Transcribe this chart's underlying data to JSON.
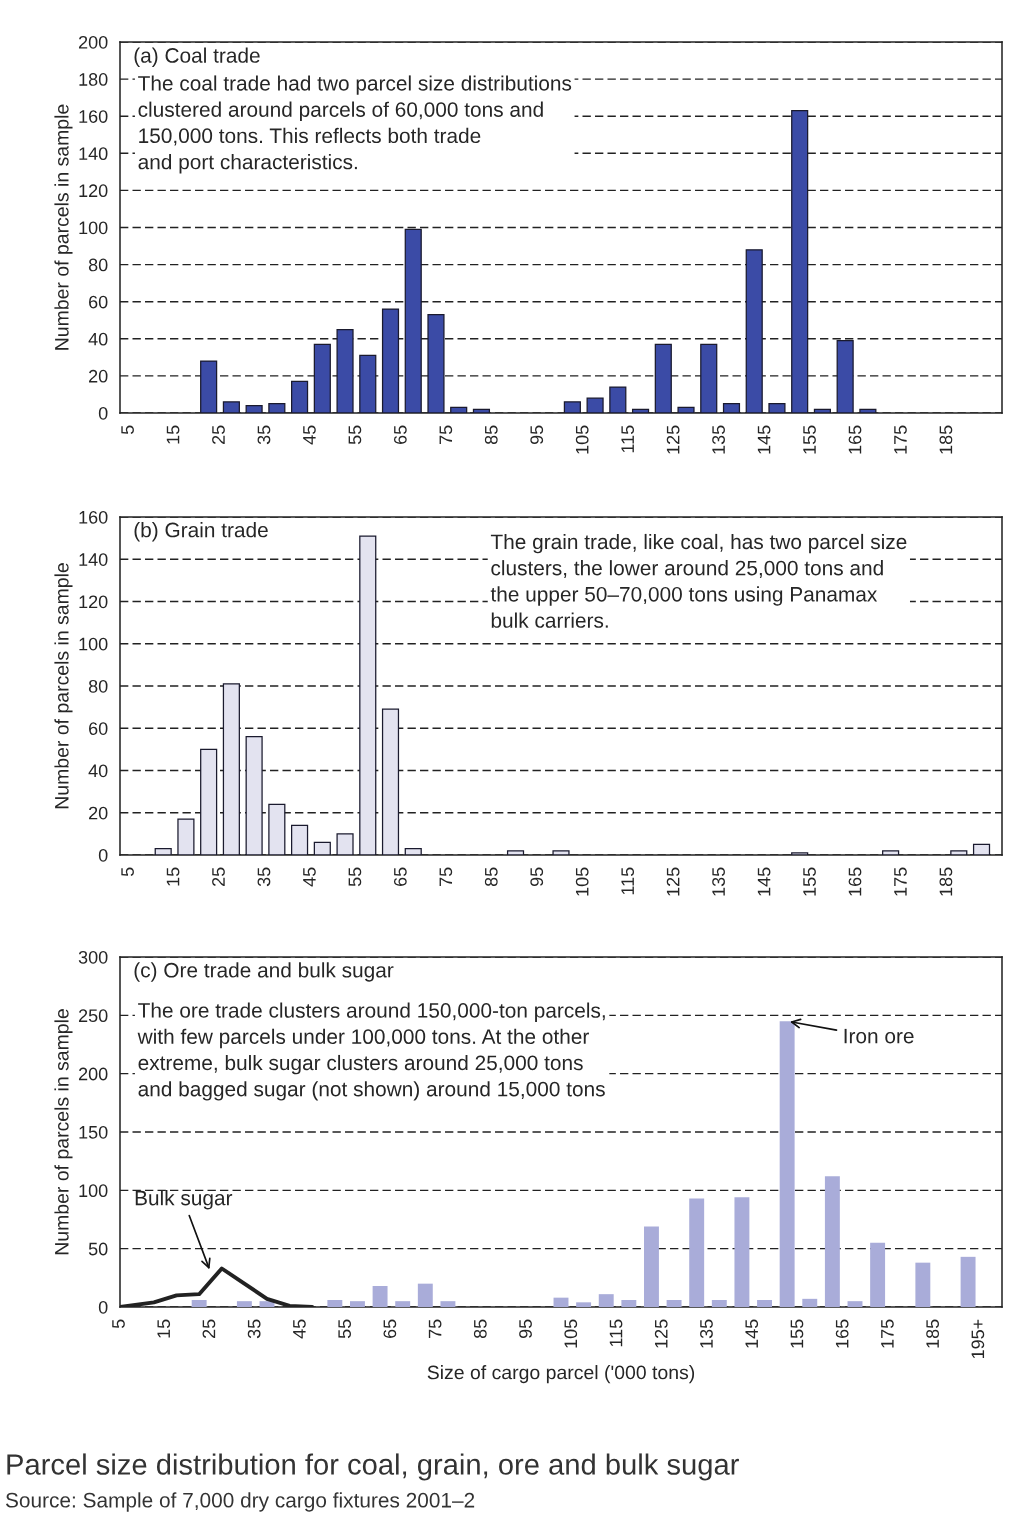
{
  "chart_data": [
    {
      "type": "bar",
      "title": "(a) Coal trade",
      "ylabel": "Number of parcels in sample",
      "annotations": [
        "The coal trade had two parcel size distributions\nclustered around parcels of 60,000 tons and\n150,000 tons. This reflects both trade\nand port characteristics."
      ],
      "series": [
        {
          "color": "#3b4ba6",
          "x": [
            22.5,
            27.5,
            32.5,
            37.5,
            42.5,
            47.5,
            52.5,
            57.5,
            62.5,
            67.5,
            72.5,
            77.5,
            82.5,
            87.5,
            92.5,
            97.5,
            102.5,
            107.5,
            112.5,
            117.5,
            122.5,
            127.5,
            132.5,
            137.5,
            142.5,
            147.5,
            152.5,
            157.5,
            162.5,
            167.5
          ],
          "values": [
            28,
            6,
            4,
            5,
            17,
            37,
            45,
            31,
            56,
            99,
            53,
            3,
            2,
            0,
            0,
            0,
            6,
            8,
            14,
            2,
            37,
            3,
            37,
            5,
            88,
            5,
            163,
            2,
            39,
            2
          ]
        }
      ],
      "xlim": [
        3,
        197
      ],
      "xticks": [
        5,
        15,
        25,
        35,
        45,
        55,
        65,
        75,
        85,
        95,
        105,
        115,
        125,
        135,
        145,
        155,
        165,
        175,
        185
      ],
      "ylim": [
        0,
        200
      ],
      "yticks": [
        0,
        20,
        40,
        60,
        80,
        100,
        120,
        140,
        160,
        180,
        200
      ],
      "grid": "y",
      "line_style": "dashed",
      "legend": false
    },
    {
      "type": "bar",
      "title": "(b) Grain trade",
      "ylabel": "Number of parcels in sample",
      "annotations": [
        "The grain trade, like coal, has two parcel size\nclusters, the lower around 25,000 tons and\nthe upper 50–70,000 tons using Panamax\nbulk carriers."
      ],
      "series": [
        {
          "color": "#e3e3f0",
          "x": [
            12.5,
            17.5,
            22.5,
            27.5,
            32.5,
            37.5,
            42.5,
            47.5,
            52.5,
            57.5,
            62.5,
            67.5,
            90,
            100,
            152.5,
            172.5,
            187.5,
            192.5
          ],
          "values": [
            3,
            17,
            50,
            81,
            56,
            24,
            14,
            6,
            10,
            151,
            69,
            3,
            2,
            2,
            1,
            2,
            2,
            5
          ]
        }
      ],
      "xlim": [
        3,
        197
      ],
      "xticks": [
        5,
        15,
        25,
        35,
        45,
        55,
        65,
        75,
        85,
        95,
        105,
        115,
        125,
        135,
        145,
        155,
        165,
        175,
        185
      ],
      "ylim": [
        0,
        160
      ],
      "yticks": [
        0,
        20,
        40,
        60,
        80,
        100,
        120,
        140,
        160
      ],
      "grid": "y",
      "line_style": "dashed",
      "legend": false
    },
    {
      "type": "bar",
      "title": "(c) Ore trade and bulk sugar",
      "ylabel": "Number of parcels in sample",
      "xlabel": "Size of cargo parcel ('000 tons)",
      "annotations": [
        "The ore trade clusters around 150,000-ton parcels,\nwith few parcels under 100,000 tons. At the other\nextreme, bulk sugar clusters around 25,000 tons\nand bagged sugar (not shown) around 15,000 tons",
        {
          "text": "Bulk sugar",
          "x": 25,
          "y": 30
        },
        {
          "text": "Iron ore",
          "x": 152.5,
          "y": 245
        },
        "Parcel size distribution for coal, grain, ore and bulk sugar",
        "Source: Sample of 7,000 dry cargo fixtures 2001–2"
      ],
      "series": [
        {
          "color": "#a9acd9",
          "x": [
            22.5,
            32.5,
            37.5,
            52.5,
            57.5,
            62.5,
            67.5,
            72.5,
            77.5,
            102.5,
            107.5,
            112.5,
            117.5,
            122.5,
            127.5,
            132.5,
            137.5,
            142.5,
            147.5,
            152.5,
            157.5,
            162.5,
            167.5,
            172.5,
            182.5,
            192.5
          ],
          "values": [
            6,
            5,
            5,
            6,
            5,
            18,
            5,
            20,
            5,
            8,
            4,
            11,
            6,
            69,
            6,
            93,
            6,
            94,
            6,
            245,
            7,
            112,
            5,
            55,
            38,
            43
          ]
        },
        {
          "type": "line",
          "line_style": "solid",
          "color": "#222222",
          "x": [
            5,
            12.5,
            17.5,
            22.5,
            27.5,
            32.5,
            37.5,
            42.5,
            47.5
          ],
          "values": [
            0,
            4,
            10,
            11,
            33,
            20,
            7,
            1,
            0
          ]
        }
      ],
      "xlim": [
        5,
        200
      ],
      "xticks": [
        5,
        15,
        25,
        35,
        45,
        55,
        65,
        75,
        85,
        95,
        105,
        115,
        125,
        135,
        145,
        155,
        165,
        175,
        185,
        {
          "value": 195,
          "label": "195+"
        }
      ],
      "ylim": [
        0,
        300
      ],
      "yticks": [
        0,
        50,
        100,
        150,
        200,
        250,
        300
      ],
      "grid": "y",
      "line_style": "dashed",
      "legend": false
    }
  ]
}
